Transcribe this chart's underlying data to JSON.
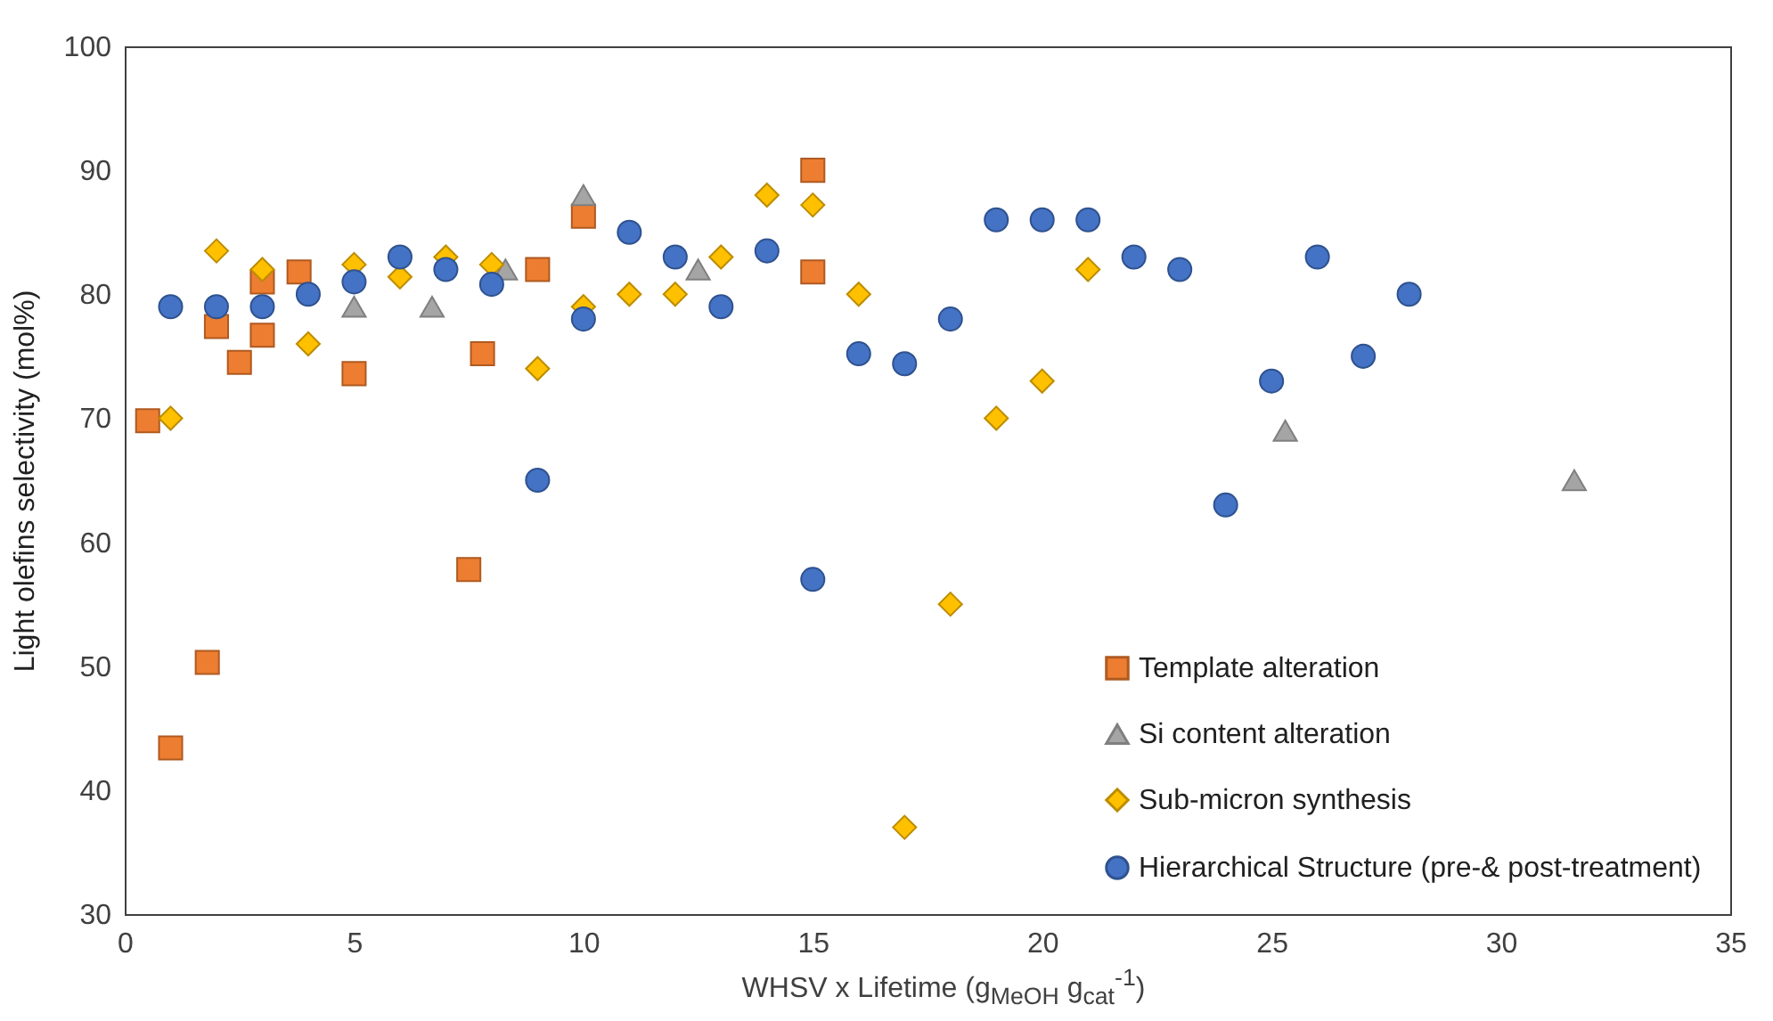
{
  "chart_data": {
    "type": "scatter",
    "xlabel": "WHSV x Lifetime (g$_{MeOH}$ g$_{cat}$$^{-1}$)",
    "ylabel": "Light olefins selectivity (mol%)",
    "xlim": [
      0,
      35
    ],
    "xticks": [
      0,
      5,
      10,
      15,
      20,
      25,
      30,
      35
    ],
    "ylim": [
      30,
      100
    ],
    "yticks": [
      30,
      40,
      50,
      60,
      70,
      80,
      90,
      100
    ],
    "grid": false,
    "legend": "bottom right",
    "series": [
      {
        "name": "Template alteration",
        "color": "#ed7d31",
        "marker": "square",
        "x": [
          0.5,
          1,
          1.8,
          2,
          2.5,
          3,
          3,
          3.8,
          5,
          7.5,
          7.8,
          9,
          10,
          15,
          15
        ],
        "values": [
          69.8,
          43.4,
          50.3,
          77.4,
          74.5,
          76.7,
          81,
          81.8,
          73.6,
          57.8,
          75.2,
          82,
          86.3,
          90,
          81.8
        ]
      },
      {
        "name": "Si content alteration",
        "color": "#a5a5a5",
        "marker": "triangle",
        "x": [
          5,
          6.7,
          8.3,
          10,
          12.5,
          25.3,
          31.6
        ],
        "values": [
          79,
          79,
          82,
          88,
          82,
          69,
          65
        ]
      },
      {
        "name": "Sub-micron synthesis",
        "color": "#ffc000",
        "marker": "diamond",
        "x": [
          1,
          2,
          3,
          4,
          5,
          6,
          7,
          8,
          9,
          10,
          11,
          12,
          13,
          14,
          15,
          16,
          17,
          18,
          19,
          20,
          21
        ],
        "values": [
          70,
          83.5,
          82,
          76,
          82.4,
          81.4,
          83,
          82.4,
          74,
          79,
          80,
          80,
          83,
          88,
          87.2,
          80,
          37,
          55,
          70,
          73,
          82
        ]
      },
      {
        "name": "Hierarchical Structure (pre-& post-treatment)",
        "color": "#4472c4",
        "marker": "circle",
        "x": [
          1,
          2,
          3,
          4,
          5,
          6,
          7,
          8,
          9,
          10,
          11,
          12,
          13,
          14,
          15,
          16,
          17,
          18,
          19,
          20,
          21,
          22,
          23,
          24,
          25,
          26,
          27,
          28
        ],
        "values": [
          79,
          79,
          79,
          80,
          81,
          83,
          82,
          80.8,
          65,
          78,
          85,
          83,
          79,
          83.5,
          57,
          75.2,
          74.4,
          78,
          86,
          86,
          86,
          83,
          82,
          63,
          73,
          83,
          75,
          80
        ]
      }
    ]
  }
}
